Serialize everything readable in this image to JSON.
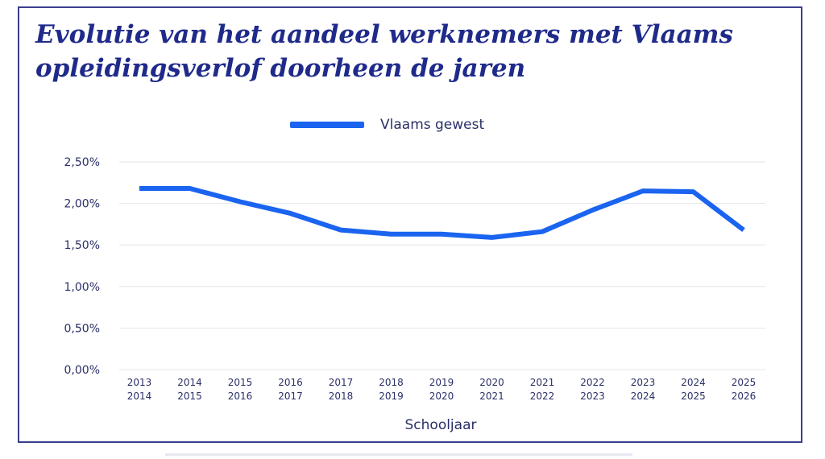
{
  "title_line1": "Evolutie van het aandeel werknemers met Vlaams",
  "title_line2": "opleidingsverlof doorheen de jaren",
  "chart_data": {
    "type": "line",
    "title": "Evolutie van het aandeel werknemers met Vlaams opleidingsverlof doorheen de jaren",
    "xlabel": "Schooljaar",
    "ylabel": "",
    "categories": [
      [
        "2013",
        "2014"
      ],
      [
        "2014",
        "2015"
      ],
      [
        "2015",
        "2016"
      ],
      [
        "2016",
        "2017"
      ],
      [
        "2017",
        "2018"
      ],
      [
        "2018",
        "2019"
      ],
      [
        "2019",
        "2020"
      ],
      [
        "2020",
        "2021"
      ],
      [
        "2021",
        "2022"
      ],
      [
        "2022",
        "2023"
      ],
      [
        "2023",
        "2024"
      ],
      [
        "2024",
        "2025"
      ],
      [
        "2025",
        "2026"
      ]
    ],
    "series": [
      {
        "name": "Vlaams gewest",
        "color": "#1a64f0",
        "values": [
          2.18,
          2.18,
          2.02,
          1.88,
          1.68,
          1.63,
          1.63,
          1.59,
          1.66,
          1.92,
          2.15,
          2.14,
          1.68
        ]
      }
    ],
    "ylim": [
      0,
      2.5
    ],
    "yticks": [
      "0,00%",
      "0,50%",
      "1,00%",
      "1,50%",
      "2,00%",
      "2,50%"
    ],
    "ytick_values": [
      0,
      0.5,
      1.0,
      1.5,
      2.0,
      2.5
    ],
    "grid": true,
    "legend_position": "top-center"
  },
  "colors": {
    "title": "#1f2a8a",
    "frame": "#3a3f8f",
    "text": "#2a2f66",
    "grid": "#e4e6ee",
    "line": "#1a64f0"
  }
}
